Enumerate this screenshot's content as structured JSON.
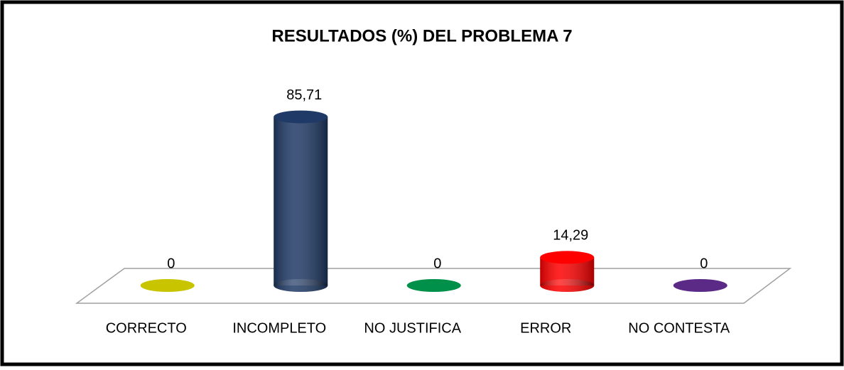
{
  "chart_data": {
    "type": "bar",
    "title": "RESULTADOS (%) DEL PROBLEMA 7",
    "categories": [
      "CORRECTO",
      "INCOMPLETO",
      "NO JUSTIFICA",
      "ERROR",
      "NO CONTESTA"
    ],
    "values": [
      0,
      85.71,
      0,
      14.29,
      0
    ],
    "value_labels": [
      "0",
      "85,71",
      "0",
      "14,29",
      "0"
    ],
    "colors": [
      "#c8c400",
      "#1f3a66",
      "#00904a",
      "#ff0000",
      "#5a2a86"
    ]
  }
}
